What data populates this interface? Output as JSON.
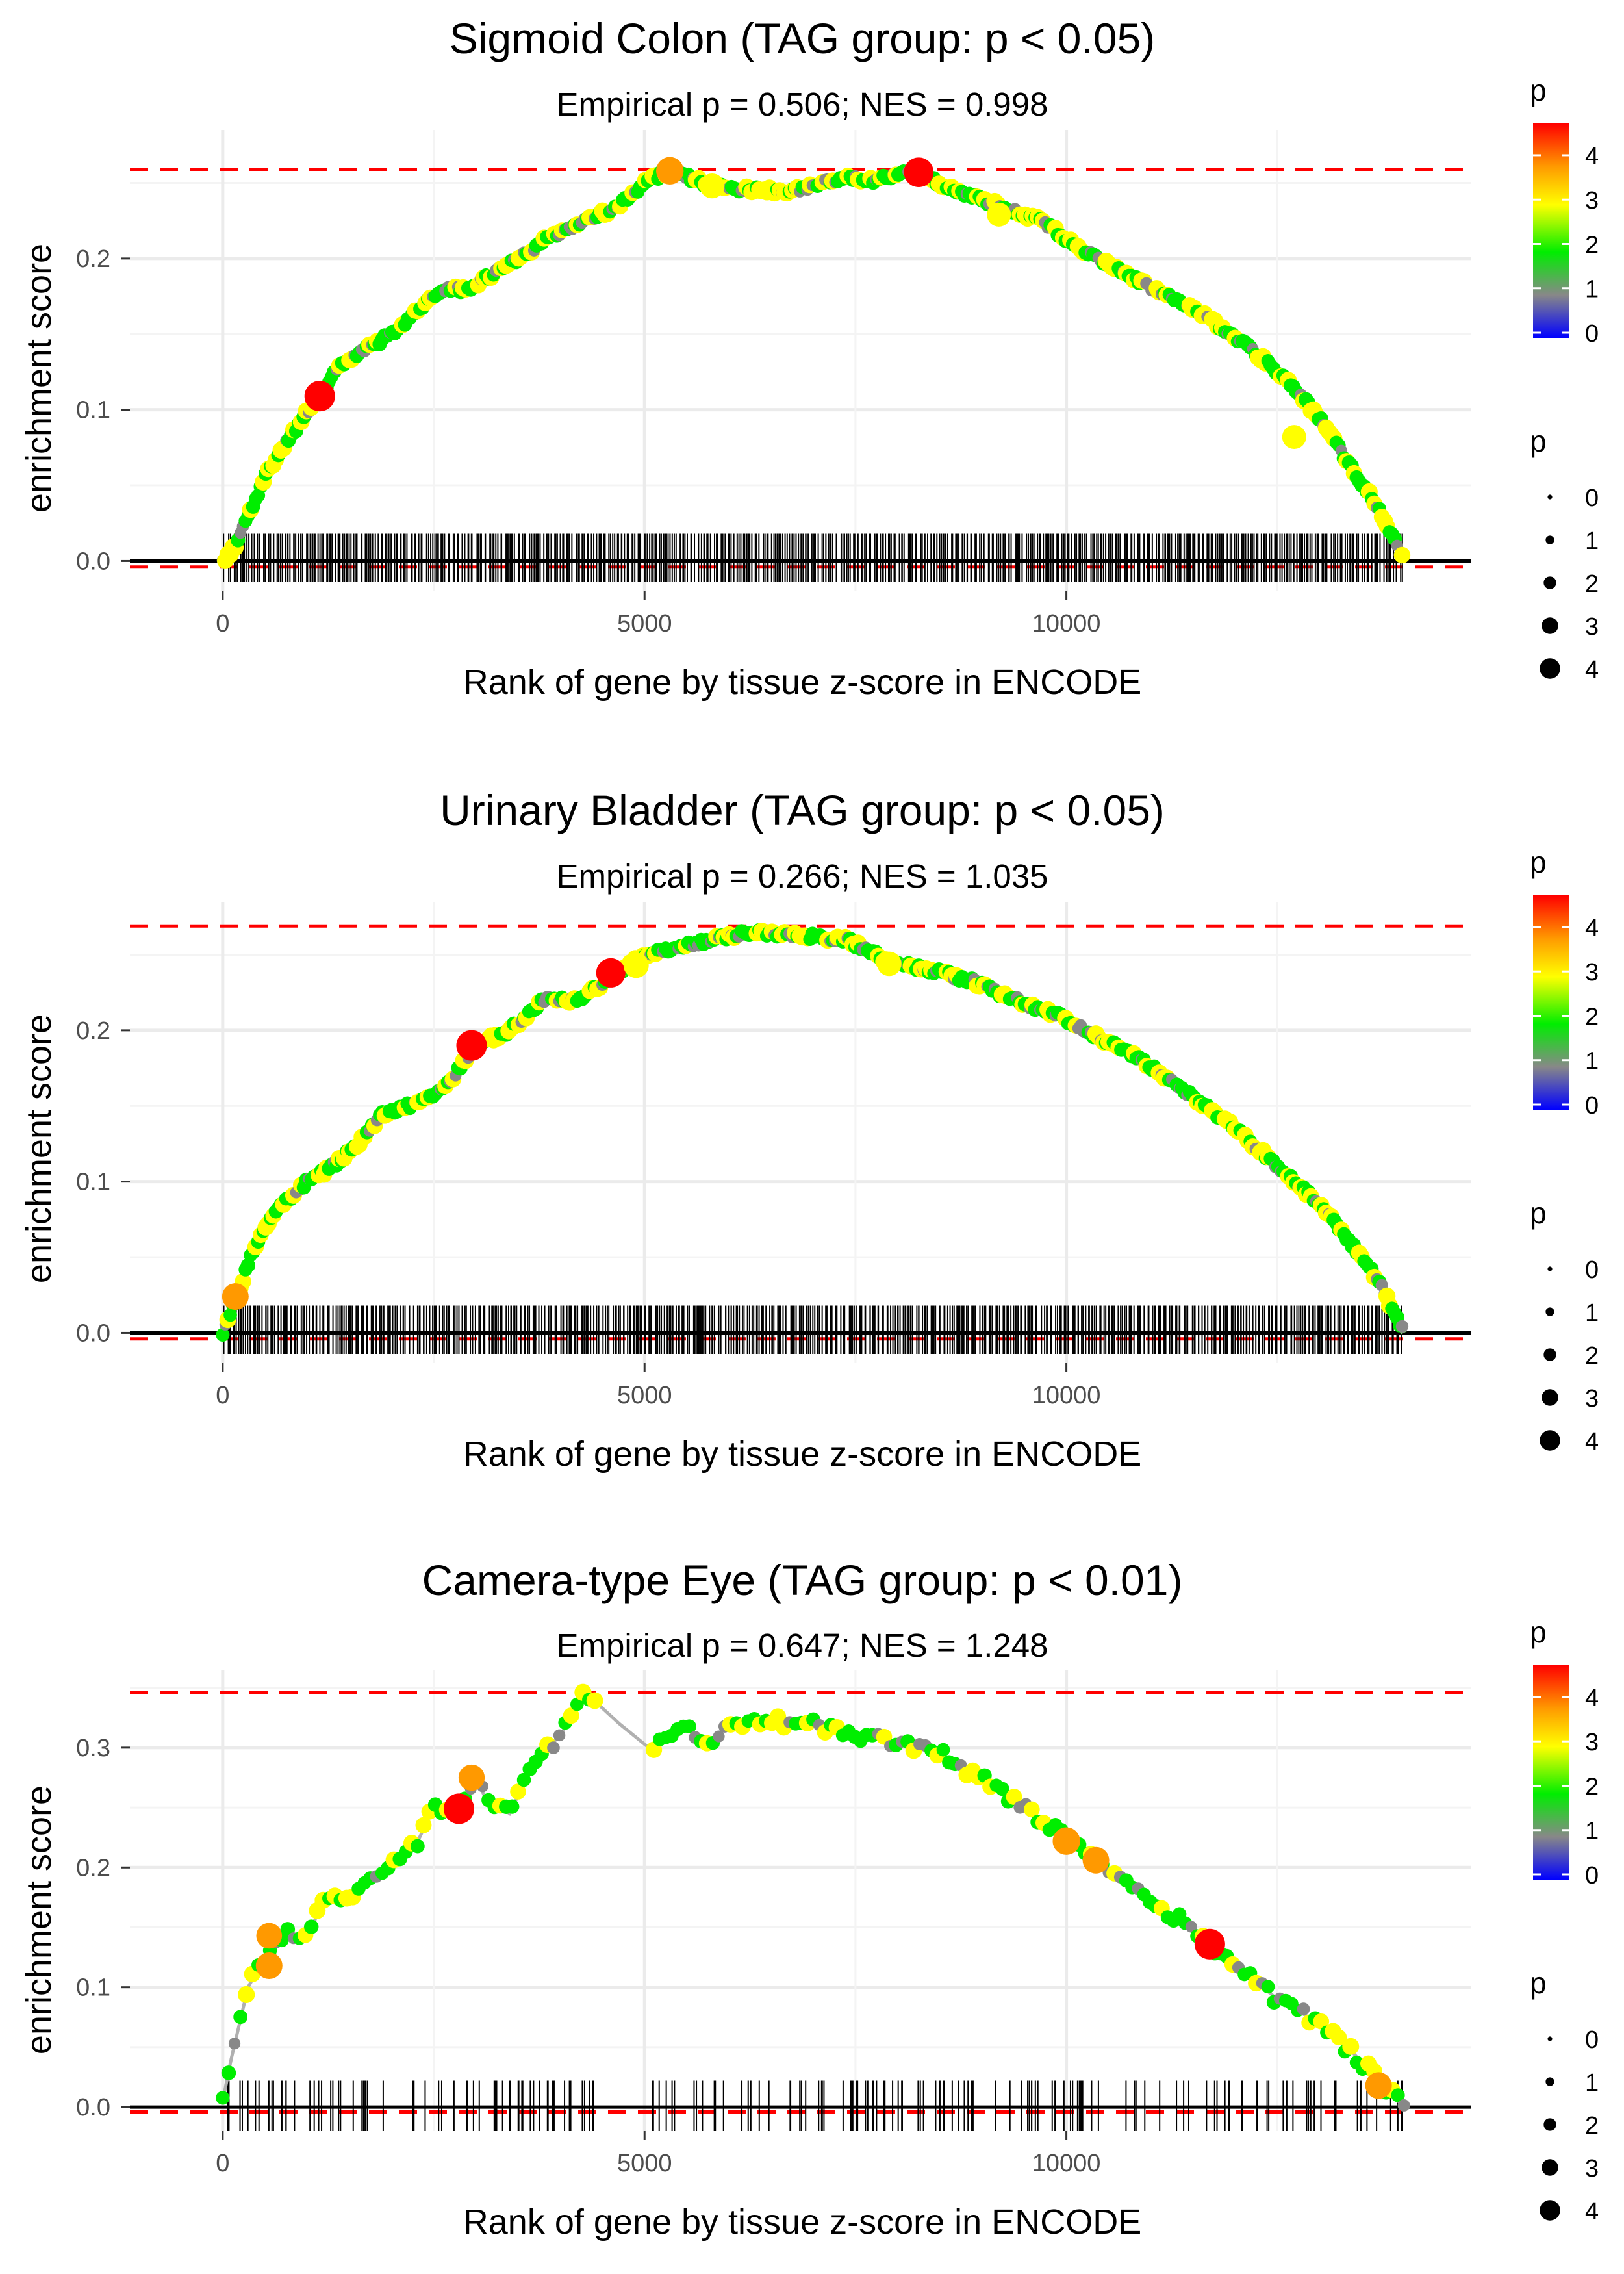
{
  "chart_data": [
    {
      "type": "line",
      "title": "Sigmoid Colon (TAG group: p < 0.05)",
      "subtitle": "Empirical p = 0.506; NES = 0.998",
      "xlabel": "Rank of gene by tissue z-score in ENCODE",
      "ylabel": "enrichment score",
      "xlim": [
        -1100,
        14800
      ],
      "ylim": [
        -0.02,
        0.285
      ],
      "x_ticks": [
        0,
        5000,
        10000
      ],
      "y_ticks": [
        0.0,
        0.1,
        0.2
      ],
      "y_tick_labels": [
        "0.0",
        "0.1",
        "0.2"
      ],
      "max_es": 0.259,
      "min_line": -0.004,
      "rug_density": 560,
      "rug_spacing": "dense",
      "rug_top": 0.018,
      "rug_bottom": -0.014,
      "grey_line": false,
      "curve": [
        [
          0,
          0
        ],
        [
          150,
          0.01
        ],
        [
          300,
          0.03
        ],
        [
          500,
          0.055
        ],
        [
          700,
          0.075
        ],
        [
          900,
          0.09
        ],
        [
          1150,
          0.11
        ],
        [
          1400,
          0.13
        ],
        [
          1700,
          0.14
        ],
        [
          2000,
          0.15
        ],
        [
          2300,
          0.165
        ],
        [
          2600,
          0.18
        ],
        [
          2900,
          0.18
        ],
        [
          3200,
          0.19
        ],
        [
          3500,
          0.2
        ],
        [
          3900,
          0.215
        ],
        [
          4300,
          0.225
        ],
        [
          4700,
          0.235
        ],
        [
          5000,
          0.25
        ],
        [
          5300,
          0.258
        ],
        [
          5800,
          0.248
        ],
        [
          6300,
          0.245
        ],
        [
          6800,
          0.245
        ],
        [
          7300,
          0.253
        ],
        [
          7700,
          0.252
        ],
        [
          8200,
          0.257
        ],
        [
          8700,
          0.245
        ],
        [
          9200,
          0.235
        ],
        [
          9700,
          0.225
        ],
        [
          10200,
          0.205
        ],
        [
          10700,
          0.19
        ],
        [
          11200,
          0.175
        ],
        [
          11700,
          0.16
        ],
        [
          12200,
          0.14
        ],
        [
          12600,
          0.12
        ],
        [
          13000,
          0.095
        ],
        [
          13400,
          0.06
        ],
        [
          13700,
          0.035
        ],
        [
          14000,
          0.0
        ]
      ],
      "highlight_points": [
        {
          "x": 1150,
          "y": 0.109,
          "p": 4.5
        },
        {
          "x": 5300,
          "y": 0.258,
          "p": 3.8
        },
        {
          "x": 8250,
          "y": 0.257,
          "p": 4.3
        },
        {
          "x": 5800,
          "y": 0.248,
          "p": 3.2
        },
        {
          "x": 9200,
          "y": 0.229,
          "p": 3.0
        },
        {
          "x": 12700,
          "y": 0.082,
          "p": 3.0
        }
      ]
    },
    {
      "type": "line",
      "title": "Urinary Bladder (TAG group: p < 0.05)",
      "subtitle": "Empirical p = 0.266; NES = 1.035",
      "xlabel": "Rank of gene by tissue z-score in ENCODE",
      "ylabel": "enrichment score",
      "xlim": [
        -1100,
        14800
      ],
      "ylim": [
        -0.02,
        0.285
      ],
      "x_ticks": [
        0,
        5000,
        10000
      ],
      "y_ticks": [
        0.0,
        0.1,
        0.2
      ],
      "y_tick_labels": [
        "0.0",
        "0.1",
        "0.2"
      ],
      "max_es": 0.269,
      "min_line": -0.004,
      "rug_density": 560,
      "rug_spacing": "dense",
      "rug_top": 0.018,
      "rug_bottom": -0.014,
      "grey_line": false,
      "curve": [
        [
          0,
          0
        ],
        [
          150,
          0.022
        ],
        [
          400,
          0.06
        ],
        [
          700,
          0.085
        ],
        [
          1000,
          0.1
        ],
        [
          1300,
          0.11
        ],
        [
          1600,
          0.125
        ],
        [
          1900,
          0.145
        ],
        [
          2200,
          0.15
        ],
        [
          2600,
          0.16
        ],
        [
          3000,
          0.19
        ],
        [
          3400,
          0.2
        ],
        [
          3800,
          0.22
        ],
        [
          4200,
          0.22
        ],
        [
          4600,
          0.235
        ],
        [
          5000,
          0.25
        ],
        [
          5400,
          0.255
        ],
        [
          5800,
          0.26
        ],
        [
          6200,
          0.265
        ],
        [
          6800,
          0.263
        ],
        [
          7400,
          0.26
        ],
        [
          7900,
          0.245
        ],
        [
          8400,
          0.24
        ],
        [
          8900,
          0.232
        ],
        [
          9400,
          0.22
        ],
        [
          9900,
          0.21
        ],
        [
          10400,
          0.195
        ],
        [
          10900,
          0.18
        ],
        [
          11400,
          0.16
        ],
        [
          11900,
          0.14
        ],
        [
          12400,
          0.115
        ],
        [
          12900,
          0.09
        ],
        [
          13300,
          0.065
        ],
        [
          13700,
          0.035
        ],
        [
          14000,
          0.0
        ]
      ],
      "highlight_points": [
        {
          "x": 150,
          "y": 0.024,
          "p": 3.6
        },
        {
          "x": 2950,
          "y": 0.19,
          "p": 4.5
        },
        {
          "x": 4600,
          "y": 0.238,
          "p": 4.2
        },
        {
          "x": 4900,
          "y": 0.243,
          "p": 3.3
        },
        {
          "x": 7900,
          "y": 0.244,
          "p": 3.1
        }
      ]
    },
    {
      "type": "line",
      "title": "Camera-type Eye (TAG group: p < 0.01)",
      "subtitle": "Empirical p = 0.647; NES = 1.248",
      "xlabel": "Rank of gene by tissue z-score in ENCODE",
      "ylabel": "enrichment score",
      "xlim": [
        -1100,
        14800
      ],
      "ylim": [
        -0.02,
        0.365
      ],
      "x_ticks": [
        0,
        5000,
        10000
      ],
      "y_ticks": [
        0.0,
        0.1,
        0.2,
        0.3
      ],
      "y_tick_labels": [
        "0.0",
        "0.1",
        "0.2",
        "0.3"
      ],
      "max_es": 0.346,
      "min_line": -0.004,
      "rug_density": 190,
      "rug_spacing": "sparse",
      "rug_top": 0.022,
      "rug_bottom": -0.02,
      "grey_line": true,
      "curve": [
        [
          0,
          0.005
        ],
        [
          100,
          0.04
        ],
        [
          300,
          0.1
        ],
        [
          500,
          0.125
        ],
        [
          600,
          0.14
        ],
        [
          800,
          0.145
        ],
        [
          1000,
          0.14
        ],
        [
          1200,
          0.175
        ],
        [
          1400,
          0.17
        ],
        [
          1700,
          0.185
        ],
        [
          2000,
          0.2
        ],
        [
          2300,
          0.22
        ],
        [
          2500,
          0.25
        ],
        [
          2800,
          0.25
        ],
        [
          3000,
          0.275
        ],
        [
          3100,
          0.26
        ],
        [
          3400,
          0.245
        ],
        [
          3700,
          0.29
        ],
        [
          4000,
          0.31
        ],
        [
          4300,
          0.346
        ],
        [
          4700,
          0.32
        ],
        [
          5050,
          0.3
        ],
        [
          5300,
          0.31
        ],
        [
          5500,
          0.32
        ],
        [
          5700,
          0.3
        ],
        [
          6000,
          0.32
        ],
        [
          6500,
          0.322
        ],
        [
          7000,
          0.32
        ],
        [
          7500,
          0.31
        ],
        [
          8000,
          0.305
        ],
        [
          8500,
          0.295
        ],
        [
          9000,
          0.275
        ],
        [
          9500,
          0.25
        ],
        [
          10000,
          0.225
        ],
        [
          10300,
          0.21
        ],
        [
          10600,
          0.19
        ],
        [
          11000,
          0.17
        ],
        [
          11500,
          0.15
        ],
        [
          11700,
          0.135
        ],
        [
          12000,
          0.12
        ],
        [
          12500,
          0.09
        ],
        [
          13000,
          0.07
        ],
        [
          13400,
          0.045
        ],
        [
          13800,
          0.015
        ],
        [
          14000,
          0.0
        ]
      ],
      "highlight_points": [
        {
          "x": 550,
          "y": 0.143,
          "p": 3.4
        },
        {
          "x": 550,
          "y": 0.118,
          "p": 3.6
        },
        {
          "x": 2800,
          "y": 0.249,
          "p": 4.5
        },
        {
          "x": 2950,
          "y": 0.275,
          "p": 3.5
        },
        {
          "x": 10000,
          "y": 0.222,
          "p": 3.8
        },
        {
          "x": 10350,
          "y": 0.206,
          "p": 3.6
        },
        {
          "x": 11700,
          "y": 0.136,
          "p": 4.5
        },
        {
          "x": 13700,
          "y": 0.018,
          "p": 3.6
        }
      ]
    }
  ],
  "legend": {
    "color_title": "p",
    "color_labels": [
      "4",
      "3",
      "2",
      "1",
      "0"
    ],
    "size_title": "p",
    "size_labels": [
      "0",
      "1",
      "2",
      "3",
      "4"
    ],
    "colors": {
      "red": "#ff0000",
      "orange": "#ff9900",
      "yellow": "#ffff00",
      "green": "#00ee00",
      "grey": "#888888",
      "blue": "#0000ff",
      "dashed_line": "#ff0000",
      "grid": "#ebebeb",
      "rug": "#000000"
    }
  }
}
